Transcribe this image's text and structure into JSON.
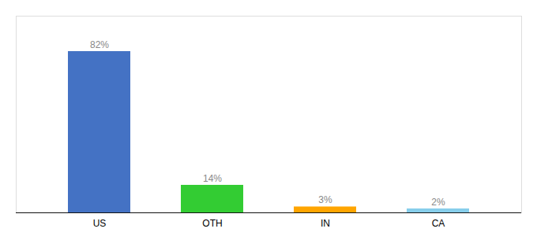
{
  "chart_data": {
    "type": "bar",
    "categories": [
      "US",
      "OTH",
      "IN",
      "CA"
    ],
    "values": [
      82,
      14,
      3,
      2
    ],
    "value_labels": [
      "82%",
      "14%",
      "3%",
      "2%"
    ],
    "colors": [
      "#4472C4",
      "#33CC33",
      "#FFA500",
      "#87CEEB"
    ],
    "ylim": [
      0,
      100
    ],
    "data_labels": true,
    "tick_labels": "x"
  }
}
